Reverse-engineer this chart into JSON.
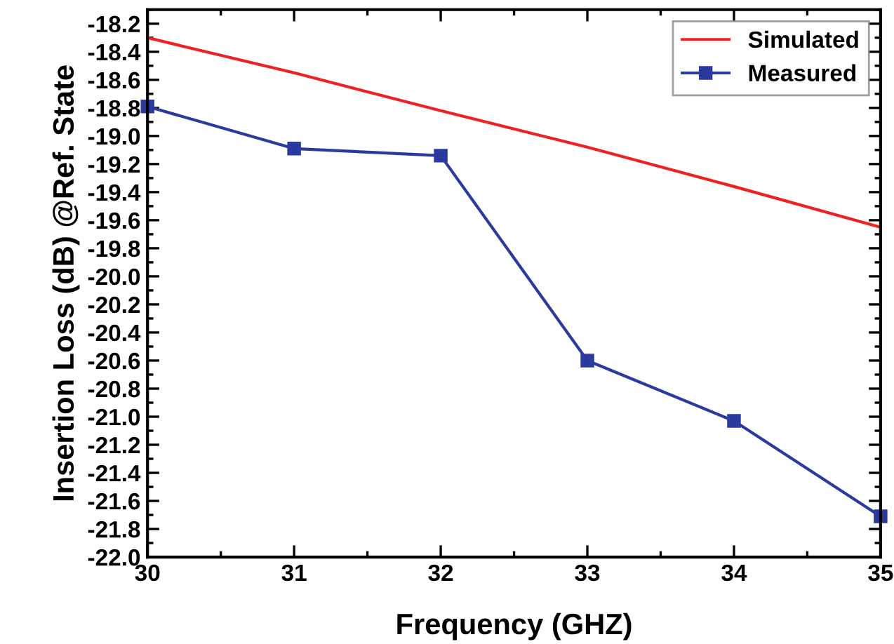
{
  "chart_data": {
    "type": "line",
    "xlabel": "Frequency (GHZ)",
    "ylabel": "Insertion Loss (dB) @Ref. State",
    "x": [
      30,
      31,
      32,
      33,
      34,
      35
    ],
    "series": [
      {
        "name": "Simulated",
        "color": "#ee2222",
        "marker": "none",
        "values": [
          -18.3,
          -18.55,
          -18.82,
          -19.08,
          -19.36,
          -19.65
        ]
      },
      {
        "name": "Measured",
        "color": "#2b3a9e",
        "marker": "square",
        "values": [
          -18.79,
          -19.09,
          -19.14,
          -20.6,
          -21.03,
          -21.71
        ]
      }
    ],
    "xlim": [
      30,
      35
    ],
    "xticks": [
      30,
      31,
      32,
      33,
      34,
      35
    ],
    "ylim": [
      -22.0,
      -18.1
    ],
    "yticks": [
      {
        "value": -22.0,
        "label": "-22.0"
      },
      {
        "value": -21.8,
        "label": "-21.8"
      },
      {
        "value": -21.6,
        "label": "-21.6"
      },
      {
        "value": -21.4,
        "label": "-21.4"
      },
      {
        "value": -21.2,
        "label": "-21.2"
      },
      {
        "value": -21.0,
        "label": "-21.0"
      },
      {
        "value": -20.8,
        "label": "-20.8"
      },
      {
        "value": -20.6,
        "label": "-20.6"
      },
      {
        "value": -20.4,
        "label": "-20.4"
      },
      {
        "value": -20.2,
        "label": "-20.2"
      },
      {
        "value": -20.0,
        "label": "-20.0"
      },
      {
        "value": -19.8,
        "label": "-19.8"
      },
      {
        "value": -19.6,
        "label": "-19.6"
      },
      {
        "value": -19.4,
        "label": "-19.4"
      },
      {
        "value": -19.2,
        "label": "-19.2"
      },
      {
        "value": -19.0,
        "label": "-19.0"
      },
      {
        "value": -18.8,
        "label": "-18.8"
      },
      {
        "value": -18.6,
        "label": "-18.6"
      },
      {
        "value": -18.4,
        "label": "-18.4"
      },
      {
        "value": -18.2,
        "label": "-18.2"
      }
    ],
    "grid": false,
    "legend": "top right",
    "line_style": "solid"
  }
}
